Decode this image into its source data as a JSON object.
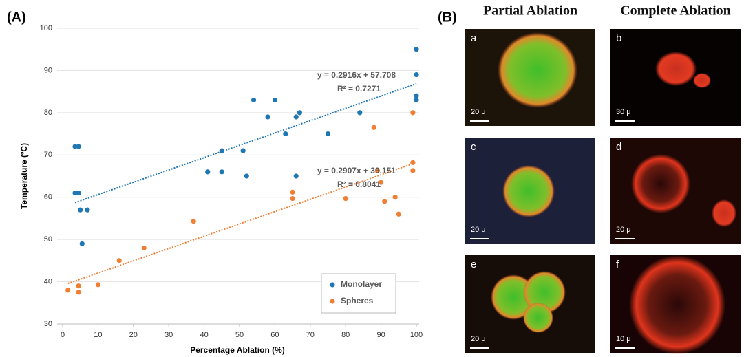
{
  "panel_a_label": "(A)",
  "chart_data": {
    "type": "scatter",
    "xlabel": "Percentage Ablation (%)",
    "ylabel": "Temperature (ºC)",
    "xlim": [
      0,
      100
    ],
    "ylim": [
      30,
      100
    ],
    "xticks": [
      0,
      10,
      20,
      30,
      40,
      50,
      60,
      70,
      80,
      90,
      100
    ],
    "yticks": [
      30,
      40,
      50,
      60,
      70,
      80,
      90,
      100
    ],
    "grid": true,
    "legend": "bottom-right",
    "series": [
      {
        "name": "Monolayer",
        "color": "#1f77b4",
        "x": [
          3.5,
          4.5,
          3.5,
          4.5,
          5,
          7,
          5.5,
          41,
          45,
          45,
          51,
          52,
          54,
          58,
          60,
          63,
          66,
          66,
          67,
          75,
          84,
          100,
          100,
          100,
          100
        ],
        "values": [
          72,
          72,
          61,
          61,
          57,
          57,
          49,
          66,
          71,
          66,
          71,
          65,
          83,
          79,
          83,
          75,
          79,
          65,
          80,
          75,
          80,
          95,
          89,
          84,
          83
        ],
        "trendline": {
          "slope": 0.2916,
          "intercept": 57.708,
          "equation": "y = 0.2916x + 57.708",
          "r2": "R² = 0.7271"
        }
      },
      {
        "name": "Spheres",
        "color": "#f07f33",
        "x": [
          1.5,
          4.5,
          4.5,
          10,
          16,
          23,
          37,
          65,
          65,
          80,
          88,
          89,
          90,
          91,
          94,
          95,
          99,
          99,
          99
        ],
        "values": [
          38,
          39,
          37.5,
          39.3,
          45,
          48,
          54.3,
          61.2,
          59.7,
          59.7,
          76.5,
          66.3,
          63.5,
          59,
          60,
          56,
          80,
          68.2,
          66.3
        ],
        "trendline": {
          "slope": 0.2907,
          "intercept": 39.151,
          "equation": "y = 0.2907x + 39.151",
          "r2": "R² = 0.8041"
        }
      }
    ]
  },
  "panel_b": {
    "label": "(B)",
    "columns": [
      "Partial Ablation",
      "Complete Ablation"
    ],
    "images": [
      {
        "letter": "a",
        "scale": "20 μ"
      },
      {
        "letter": "b",
        "scale": "30 μ"
      },
      {
        "letter": "c",
        "scale": "20 μ"
      },
      {
        "letter": "d",
        "scale": "20 μ"
      },
      {
        "letter": "e",
        "scale": "20 μ"
      },
      {
        "letter": "f",
        "scale": "10 μ"
      }
    ]
  }
}
